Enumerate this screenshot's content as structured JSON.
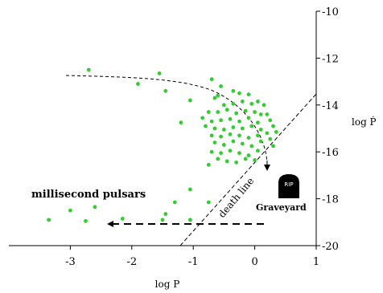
{
  "chart_data": {
    "type": "scatter",
    "xlabel": "log P",
    "ylabel": "log Ṗ",
    "xlim": [
      -4,
      1
    ],
    "ylim": [
      -20,
      -10
    ],
    "y_inverted": true,
    "x_ticks": [
      "-3",
      "-2",
      "-1",
      "0",
      "1"
    ],
    "x_tick_values": [
      -3,
      -2,
      -1,
      0,
      1
    ],
    "y_ticks": [
      "-10",
      "-12",
      "-14",
      "-16",
      "-18",
      "-20"
    ],
    "y_tick_values": [
      -10,
      -12,
      -14,
      -16,
      -18,
      -20
    ],
    "grid": false,
    "point_color": "#33cc33",
    "points": [
      [
        -2.7,
        -12.5
      ],
      [
        -1.55,
        -12.65
      ],
      [
        -1.9,
        -13.1
      ],
      [
        -1.45,
        -13.4
      ],
      [
        -1.05,
        -13.8
      ],
      [
        -1.2,
        -14.75
      ],
      [
        -0.7,
        -12.9
      ],
      [
        -0.6,
        -13.6
      ],
      [
        -0.65,
        -13.7
      ],
      [
        -0.35,
        -13.4
      ],
      [
        -0.25,
        -13.5
      ],
      [
        -0.1,
        -13.55
      ],
      [
        -0.5,
        -14.0
      ],
      [
        -0.35,
        -13.95
      ],
      [
        -0.2,
        -13.85
      ],
      [
        -0.05,
        -13.95
      ],
      [
        0.05,
        -13.85
      ],
      [
        0.15,
        -14.0
      ],
      [
        -0.75,
        -14.3
      ],
      [
        -0.6,
        -14.3
      ],
      [
        -0.45,
        -14.2
      ],
      [
        -0.3,
        -14.35
      ],
      [
        -0.15,
        -14.25
      ],
      [
        0.0,
        -14.3
      ],
      [
        0.2,
        -14.4
      ],
      [
        -0.7,
        -14.7
      ],
      [
        -0.55,
        -14.65
      ],
      [
        -0.4,
        -14.6
      ],
      [
        -0.25,
        -14.7
      ],
      [
        -0.1,
        -14.55
      ],
      [
        0.05,
        -14.75
      ],
      [
        0.25,
        -14.65
      ],
      [
        -0.8,
        -14.9
      ],
      [
        -0.65,
        -15.0
      ],
      [
        -0.5,
        -15.05
      ],
      [
        -0.35,
        -14.95
      ],
      [
        -0.2,
        -15.0
      ],
      [
        -0.05,
        -14.9
      ],
      [
        0.1,
        -15.05
      ],
      [
        0.3,
        -14.9
      ],
      [
        -0.7,
        -15.3
      ],
      [
        -0.55,
        -15.35
      ],
      [
        -0.4,
        -15.25
      ],
      [
        -0.25,
        -15.3
      ],
      [
        -0.1,
        -15.4
      ],
      [
        0.05,
        -15.3
      ],
      [
        0.2,
        -15.2
      ],
      [
        0.35,
        -15.15
      ],
      [
        -0.65,
        -15.6
      ],
      [
        -0.5,
        -15.7
      ],
      [
        -0.35,
        -15.55
      ],
      [
        -0.2,
        -15.65
      ],
      [
        -0.05,
        -15.75
      ],
      [
        0.1,
        -15.55
      ],
      [
        0.25,
        -15.45
      ],
      [
        -0.7,
        -16.0
      ],
      [
        -0.55,
        -16.05
      ],
      [
        -0.4,
        -15.95
      ],
      [
        -0.25,
        -16.05
      ],
      [
        -0.1,
        -16.15
      ],
      [
        0.05,
        -15.95
      ],
      [
        -0.6,
        -16.3
      ],
      [
        -0.45,
        -16.4
      ],
      [
        -0.3,
        -16.45
      ],
      [
        -0.15,
        -16.3
      ],
      [
        0.0,
        -16.35
      ],
      [
        -0.75,
        -16.55
      ],
      [
        -1.05,
        -17.6
      ],
      [
        -0.75,
        -18.15
      ],
      [
        -1.3,
        -18.15
      ],
      [
        -1.45,
        -18.65
      ],
      [
        -1.5,
        -18.9
      ],
      [
        -1.05,
        -18.9
      ],
      [
        -2.15,
        -18.85
      ],
      [
        -2.6,
        -18.35
      ],
      [
        -3.0,
        -18.5
      ],
      [
        -3.35,
        -18.9
      ],
      [
        -2.75,
        -18.95
      ],
      [
        -0.55,
        -13.2
      ],
      [
        0.1,
        -14.4
      ],
      [
        -0.85,
        -14.55
      ],
      [
        0.3,
        -15.75
      ]
    ],
    "annotations": {
      "millisecond": "millisecond pulsars",
      "death_line": "death line",
      "graveyard": "Graveyard",
      "tombstone": "RIP"
    }
  }
}
